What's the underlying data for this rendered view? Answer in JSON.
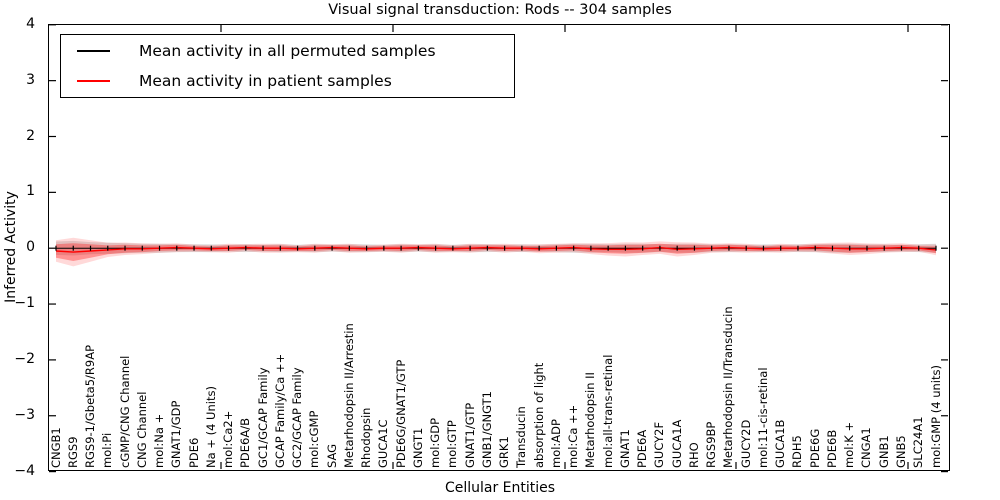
{
  "title": "Visual signal transduction: Rods -- 304 samples",
  "axes": {
    "ylabel": "Inferred Activity",
    "xlabel": "Cellular Entities",
    "yticks": [
      4,
      3,
      2,
      1,
      0,
      -1,
      -2,
      -3,
      -4
    ],
    "ylim": [
      -4,
      4
    ]
  },
  "legend": {
    "items": [
      {
        "label": "Mean activity in all permuted samples",
        "color": "#000000"
      },
      {
        "label": "Mean activity in patient samples",
        "color": "#ff0000"
      }
    ]
  },
  "chart_data": {
    "type": "line",
    "title": "Visual signal transduction: Rods -- 304 samples",
    "xlabel": "Cellular Entities",
    "ylabel": "Inferred Activity",
    "ylim": [
      -4,
      4
    ],
    "yticks": [
      4,
      3,
      2,
      1,
      0,
      -1,
      -2,
      -3,
      -4
    ],
    "grid": false,
    "legend_position": "upper left",
    "marker_note": "black line carries small vertical tick markers at each point; both series hug 0 with shaded uncertainty bands",
    "categories": [
      "CNGB1",
      "RGS9",
      "RGS9-1/Gbeta5/R9AP",
      "mol:Pi",
      "cGMP/CNG Channel",
      "CNG Channel",
      "mol:Na +",
      "GNAT1/GDP",
      "PDE6",
      "Na + (4 Units)",
      "mol:Ca2+",
      "PDE6A/B",
      "GC1/GCAP Family",
      "GCAP Family/Ca ++",
      "GC2/GCAP Family",
      "mol:cGMP",
      "SAG",
      "Metarhodopsin II/Arrestin",
      "Rhodopsin",
      "GUCA1C",
      "PDE6G/GNAT1/GTP",
      "GNGT1",
      "mol:GDP",
      "mol:GTP",
      "GNAT1/GTP",
      "GNB1/GNGT1",
      "GRK1",
      "Transducin",
      "absorption of light",
      "mol:ADP",
      "mol:Ca ++",
      "Metarhodopsin II",
      "mol:all-trans-retinal",
      "GNAT1",
      "PDE6A",
      "GUCY2F",
      "GUCA1A",
      "RHO",
      "RGS9BP",
      "Metarhodopsin II/Transducin",
      "GUCY2D",
      "mol:11-cis-retinal",
      "GUCA1B",
      "RDH5",
      "PDE6G",
      "PDE6B",
      "mol:K +",
      "CNGA1",
      "GNB1",
      "GNB5",
      "SLC24A1",
      "mol:GMP (4 units)"
    ],
    "series": [
      {
        "name": "Mean activity in all permuted samples",
        "color": "#000000",
        "band_color": "rgba(0,0,0,0.13)",
        "values": [
          0,
          0,
          0,
          0,
          0,
          0,
          0,
          0,
          0,
          0,
          0,
          0,
          0,
          0,
          0,
          0,
          0,
          0,
          0,
          0,
          0,
          0,
          0,
          0,
          0,
          0,
          0,
          0,
          0,
          0,
          0,
          0,
          0,
          0,
          0,
          0,
          0,
          0,
          0,
          0,
          0,
          0,
          0,
          0,
          0,
          0,
          0,
          0,
          0,
          0,
          0,
          0
        ],
        "band": [
          0.12,
          0.13,
          0.11,
          0.1,
          0.09,
          0.08,
          0.08,
          0.07,
          0.07,
          0.07,
          0.06,
          0.07,
          0.06,
          0.07,
          0.06,
          0.07,
          0.06,
          0.07,
          0.07,
          0.06,
          0.07,
          0.06,
          0.07,
          0.06,
          0.07,
          0.07,
          0.06,
          0.07,
          0.06,
          0.07,
          0.08,
          0.08,
          0.07,
          0.08,
          0.08,
          0.07,
          0.08,
          0.08,
          0.07,
          0.07,
          0.06,
          0.07,
          0.06,
          0.07,
          0.07,
          0.08,
          0.08,
          0.07,
          0.07,
          0.06,
          0.07,
          0.08
        ]
      },
      {
        "name": "Mean activity in patient samples",
        "color": "#ff0000",
        "band_color": "rgba(255,0,0,0.3)",
        "values": [
          -0.05,
          -0.07,
          -0.05,
          -0.03,
          -0.01,
          -0.01,
          0,
          0.01,
          0,
          -0.01,
          0,
          0.01,
          0,
          0,
          -0.01,
          0,
          0.01,
          0,
          -0.01,
          0,
          0,
          0.01,
          0,
          -0.01,
          0,
          0.01,
          0,
          0,
          -0.01,
          0,
          0.01,
          -0.01,
          -0.02,
          -0.02,
          -0.01,
          0.01,
          -0.02,
          -0.01,
          0,
          0.01,
          0,
          -0.01,
          0,
          0,
          0.01,
          0,
          -0.01,
          -0.01,
          0,
          0.01,
          0,
          -0.03
        ],
        "band": [
          0.12,
          0.16,
          0.12,
          0.08,
          0.07,
          0.06,
          0.05,
          0.05,
          0.04,
          0.04,
          0.05,
          0.04,
          0.05,
          0.05,
          0.04,
          0.05,
          0.04,
          0.05,
          0.04,
          0.04,
          0.05,
          0.04,
          0.05,
          0.04,
          0.05,
          0.04,
          0.05,
          0.04,
          0.05,
          0.05,
          0.05,
          0.06,
          0.07,
          0.08,
          0.07,
          0.07,
          0.08,
          0.07,
          0.05,
          0.05,
          0.05,
          0.04,
          0.05,
          0.04,
          0.05,
          0.06,
          0.07,
          0.06,
          0.05,
          0.05,
          0.04,
          0.06
        ]
      }
    ]
  }
}
